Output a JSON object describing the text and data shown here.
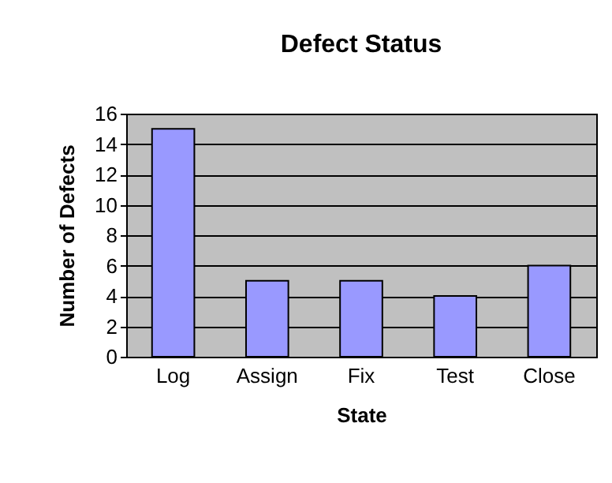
{
  "chart_data": {
    "type": "bar",
    "title": "Defect Status",
    "xlabel": "State",
    "ylabel": "Number of Defects",
    "categories": [
      "Log",
      "Assign",
      "Fix",
      "Test",
      "Close"
    ],
    "values": [
      15,
      5,
      5,
      4,
      6
    ],
    "color": "#9999ff",
    "ylim": [
      0,
      16
    ],
    "yticks": [
      0,
      2,
      4,
      6,
      8,
      10,
      12,
      14,
      16
    ],
    "grid": "y"
  }
}
